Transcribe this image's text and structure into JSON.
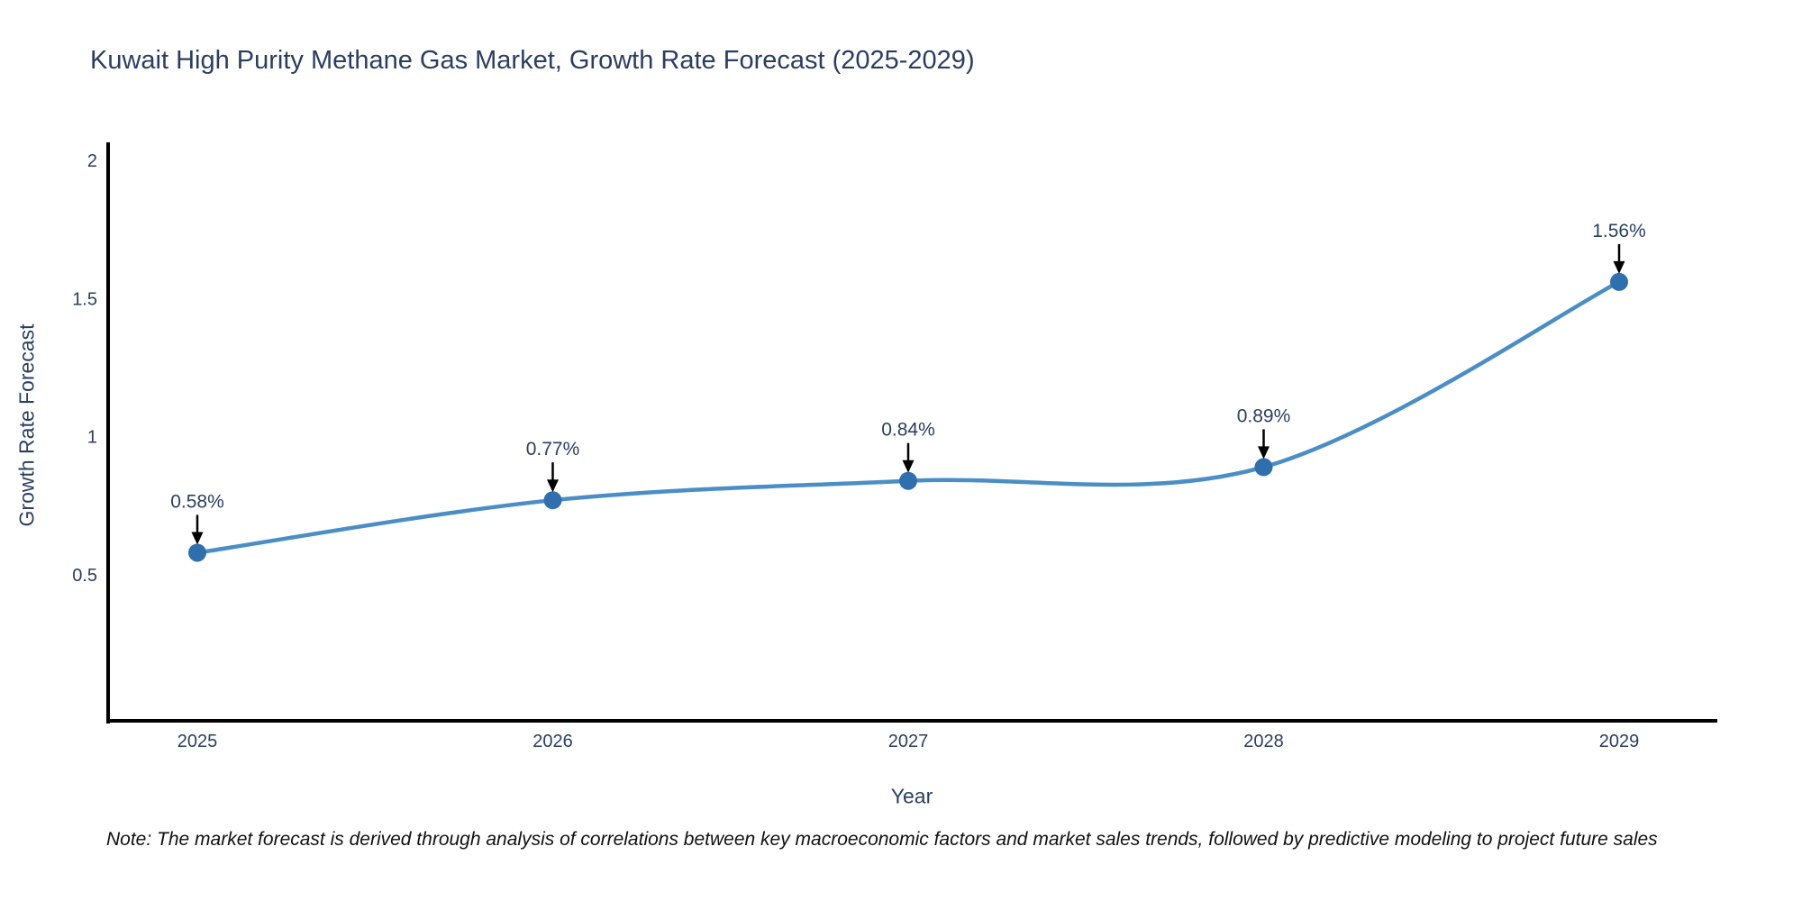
{
  "note": "Note: The market forecast is derived through analysis of correlations between key macroeconomic factors and market sales trends, followed by predictive modeling to project future sales",
  "chart_data": {
    "type": "line",
    "title": "Kuwait High Purity Methane Gas Market, Growth Rate Forecast (2025-2029)",
    "xlabel": "Year",
    "ylabel": "Growth Rate Forecast",
    "x": [
      2025,
      2026,
      2027,
      2028,
      2029
    ],
    "values": [
      0.58,
      0.77,
      0.84,
      0.89,
      1.56
    ],
    "point_labels": [
      "0.58%",
      "0.77%",
      "0.84%",
      "0.89%",
      "1.56%"
    ],
    "yticks": [
      0.5,
      1,
      1.5,
      2
    ],
    "ylim": [
      -0.03,
      2.06
    ],
    "line_shape": "spline",
    "grid": false,
    "legend": "none",
    "colors": {
      "line": "#4a8ec5",
      "marker": "#2f6fad",
      "text": "#2a3f5f",
      "axis": "#000000",
      "arrow": "#000000",
      "note_text": "#111111",
      "background": "#ffffff"
    }
  }
}
